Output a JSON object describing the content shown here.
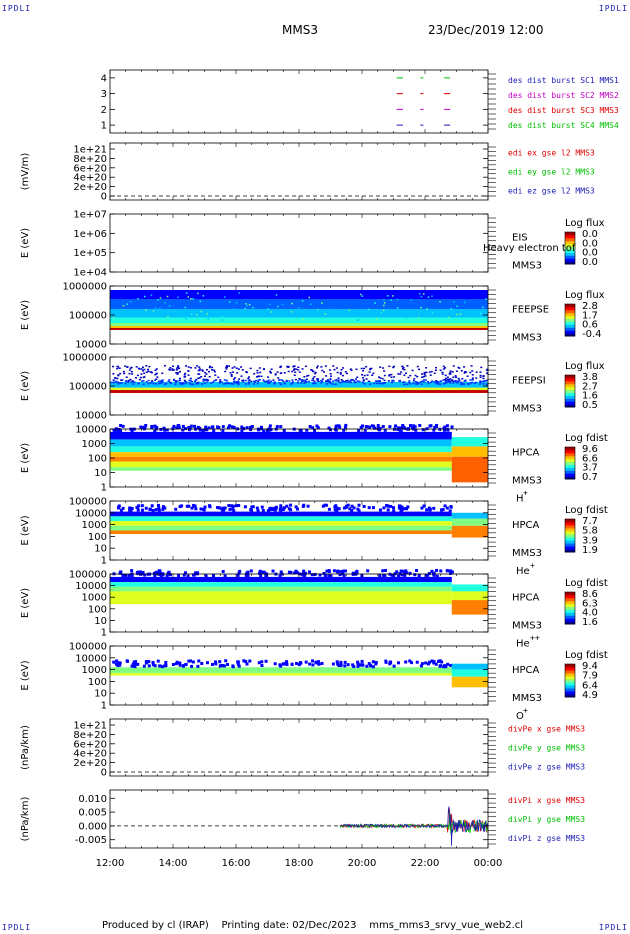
{
  "page": {
    "corner_label": "IPDLI",
    "title": "MMS3",
    "date": "23/Dec/2019 12:00",
    "footer": "Produced by cl (IRAP)    Printing date: 02/Dec/2023    mms_mms3_srvy_vue_web2.cl"
  },
  "chart_data": [
    {
      "id": "burst",
      "type": "line",
      "ylim": [
        0.5,
        4.5
      ],
      "yticks": [
        "1",
        "2",
        "3",
        "4"
      ],
      "legend": [
        {
          "text": "des dist burst SC1 MMS1",
          "color": "#1c1cb4"
        },
        {
          "text": "des dist burst SC2 MMS2",
          "color": "#c400c4"
        },
        {
          "text": "des dist burst SC3 MMS3",
          "color": "#e00000"
        },
        {
          "text": "des dist burst SC4 MMS4",
          "color": "#00c000"
        }
      ],
      "segments": [
        {
          "y": 4,
          "x": [
            [
              21.1,
              21.3
            ],
            [
              21.85,
              21.95
            ],
            [
              22.6,
              22.8
            ]
          ],
          "color": "#00c000"
        },
        {
          "y": 3,
          "x": [
            [
              21.1,
              21.3
            ],
            [
              21.85,
              21.95
            ],
            [
              22.6,
              22.8
            ]
          ],
          "color": "#e00000"
        },
        {
          "y": 2,
          "x": [
            [
              21.1,
              21.3
            ],
            [
              21.85,
              21.95
            ],
            [
              22.6,
              22.8
            ]
          ],
          "color": "#c400c4"
        },
        {
          "y": 1,
          "x": [
            [
              21.1,
              21.3
            ],
            [
              21.85,
              21.95
            ],
            [
              22.6,
              22.8
            ]
          ],
          "color": "#1c1cb4"
        }
      ]
    },
    {
      "id": "edi",
      "type": "line",
      "ylabel": "(mV/m)",
      "yticks": [
        "0",
        "2e+20",
        "4e+20",
        "6e+20",
        "8e+20",
        "1e+21"
      ],
      "legend": [
        {
          "text": "edi ex gse l2 MMS3",
          "color": "#e00000"
        },
        {
          "text": "edi ey gse l2 MMS3",
          "color": "#00c000"
        },
        {
          "text": "edi ez gse l2 MMS3",
          "color": "#1c1cb4"
        }
      ]
    },
    {
      "id": "eis",
      "type": "heatmap",
      "ylabel": "E (eV)",
      "yticks": [
        "1e+04",
        "1e+05",
        "1e+06",
        "1e+07"
      ],
      "inst": [
        "EIS",
        "MMS3"
      ],
      "overlay": "Heavy electron tof",
      "cb_title": "Log flux",
      "cb_values": [
        "0.0",
        "0.0",
        "0.0",
        "0.0"
      ]
    },
    {
      "id": "feepse",
      "type": "heatmap",
      "ylabel": "E (eV)",
      "yticks": [
        "10000",
        "100000",
        "1000000"
      ],
      "inst": [
        "FEEPSE",
        "MMS3"
      ],
      "cb_title": "Log flux",
      "cb_values": [
        "2.8",
        "1.7",
        "0.6",
        "-0.4"
      ]
    },
    {
      "id": "feepsi",
      "type": "heatmap",
      "ylabel": "E (eV)",
      "yticks": [
        "10000",
        "100000",
        "1000000"
      ],
      "inst": [
        "FEEPSI",
        "MMS3"
      ],
      "cb_title": "Log flux",
      "cb_values": [
        "3.8",
        "2.7",
        "1.6",
        "0.5"
      ]
    },
    {
      "id": "hpca_h",
      "type": "heatmap",
      "ylabel": "E (eV)",
      "yticks": [
        "1",
        "10",
        "100",
        "1000",
        "10000"
      ],
      "inst": [
        "HPCA",
        "MMS3",
        "H",
        "+"
      ],
      "cb_title": "Log fdist",
      "cb_values": [
        "9.6",
        "6.6",
        "3.7",
        "0.7"
      ]
    },
    {
      "id": "hpca_he",
      "type": "heatmap",
      "ylabel": "E (eV)",
      "yticks": [
        "1",
        "10",
        "100",
        "1000",
        "10000",
        "100000"
      ],
      "inst": [
        "HPCA",
        "MMS3",
        "He",
        "+"
      ],
      "cb_title": "Log fdist",
      "cb_values": [
        "7.7",
        "5.8",
        "3.9",
        "1.9"
      ]
    },
    {
      "id": "hpca_hepp",
      "type": "heatmap",
      "ylabel": "E (eV)",
      "yticks": [
        "1",
        "10",
        "100",
        "1000",
        "10000",
        "100000"
      ],
      "inst": [
        "HPCA",
        "MMS3",
        "He",
        "++"
      ],
      "cb_title": "Log fdist",
      "cb_values": [
        "8.6",
        "6.3",
        "4.0",
        "1.6"
      ]
    },
    {
      "id": "hpca_o",
      "type": "heatmap",
      "ylabel": "E (eV)",
      "yticks": [
        "1",
        "10",
        "100",
        "1000",
        "10000",
        "100000"
      ],
      "inst": [
        "HPCA",
        "MMS3",
        "O",
        "+"
      ],
      "cb_title": "Log fdist",
      "cb_values": [
        "9.4",
        "7.9",
        "6.4",
        "4.9"
      ]
    },
    {
      "id": "divpe",
      "type": "line",
      "ylabel": "(nPa/km)",
      "yticks": [
        "0",
        "2e+20",
        "4e+20",
        "6e+20",
        "8e+20",
        "1e+21"
      ],
      "legend": [
        {
          "text": "divPe x gse MMS3",
          "color": "#e00000"
        },
        {
          "text": "divPe y gse MMS3",
          "color": "#00c000"
        },
        {
          "text": "divPe z gse MMS3",
          "color": "#1c1cb4"
        }
      ]
    },
    {
      "id": "divpi",
      "type": "line",
      "ylabel": "(nPa/km)",
      "ylim": [
        -0.008,
        0.013
      ],
      "yticks": [
        "-0.005",
        "0.000",
        "0.005",
        "0.010"
      ],
      "legend": [
        {
          "text": "divPi x gse MMS3",
          "color": "#e00000"
        },
        {
          "text": "divPi y gse MMS3",
          "color": "#00c000"
        },
        {
          "text": "divPi z gse MMS3",
          "color": "#1c1cb4"
        }
      ]
    }
  ],
  "xaxis": {
    "ticks": [
      "12:00",
      "14:00",
      "16:00",
      "18:00",
      "20:00",
      "22:00",
      "00:00"
    ]
  }
}
